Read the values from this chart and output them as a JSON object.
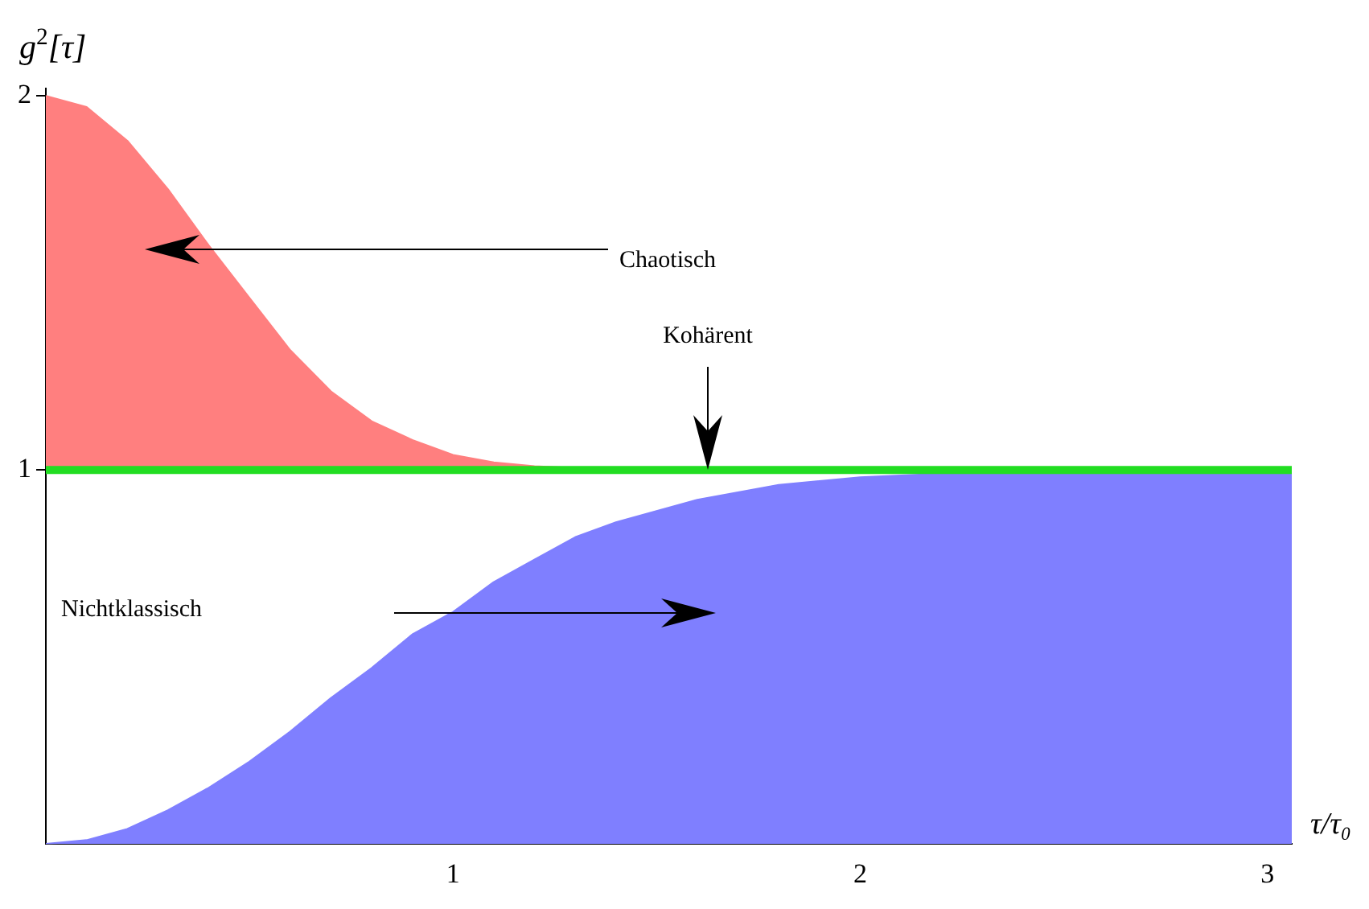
{
  "chart_data": {
    "type": "area",
    "xlabel": "τ/τ₀",
    "ylabel": "g$^{2}$[τ]",
    "xlim": [
      0,
      3.06
    ],
    "ylim": [
      0,
      2.02
    ],
    "xticks": [
      1,
      2,
      3
    ],
    "yticks": [
      1,
      2
    ],
    "grid": false,
    "legend": false,
    "marker": "none",
    "series": [
      {
        "color": "#ff7f7f",
        "x": [
          0,
          0.1,
          0.2,
          0.3,
          0.4,
          0.5,
          0.6,
          0.7,
          0.8,
          0.9,
          1.0,
          1.1,
          1.2,
          1.3,
          1.4,
          1.5,
          1.7,
          2.0,
          2.5,
          3.06
        ],
        "values": [
          2,
          1.97,
          1.88,
          1.75,
          1.6,
          1.46,
          1.32,
          1.21,
          1.13,
          1.08,
          1.04,
          1.02,
          1.01,
          1.005,
          1.002,
          1.001,
          1,
          1,
          1,
          1
        ]
      },
      {
        "type": "line",
        "color": "#22dd22",
        "x": [
          0,
          3.06
        ],
        "values": [
          1,
          1
        ]
      },
      {
        "color": "#7f7fff",
        "x": [
          0,
          0.1,
          0.2,
          0.3,
          0.4,
          0.5,
          0.6,
          0.7,
          0.8,
          0.9,
          1.0,
          1.1,
          1.2,
          1.3,
          1.4,
          1.5,
          1.6,
          1.7,
          1.8,
          1.9,
          2.0,
          2.2,
          2.4,
          2.7,
          3.06
        ],
        "values": [
          0,
          0.01,
          0.04,
          0.09,
          0.15,
          0.22,
          0.3,
          0.39,
          0.47,
          0.56,
          0.62,
          0.7,
          0.76,
          0.82,
          0.86,
          0.89,
          0.92,
          0.94,
          0.96,
          0.97,
          0.98,
          0.99,
          1,
          1,
          1
        ]
      }
    ],
    "annotations": [
      "Chaotisch",
      "Kohärent",
      "Nichtklassisch"
    ]
  }
}
